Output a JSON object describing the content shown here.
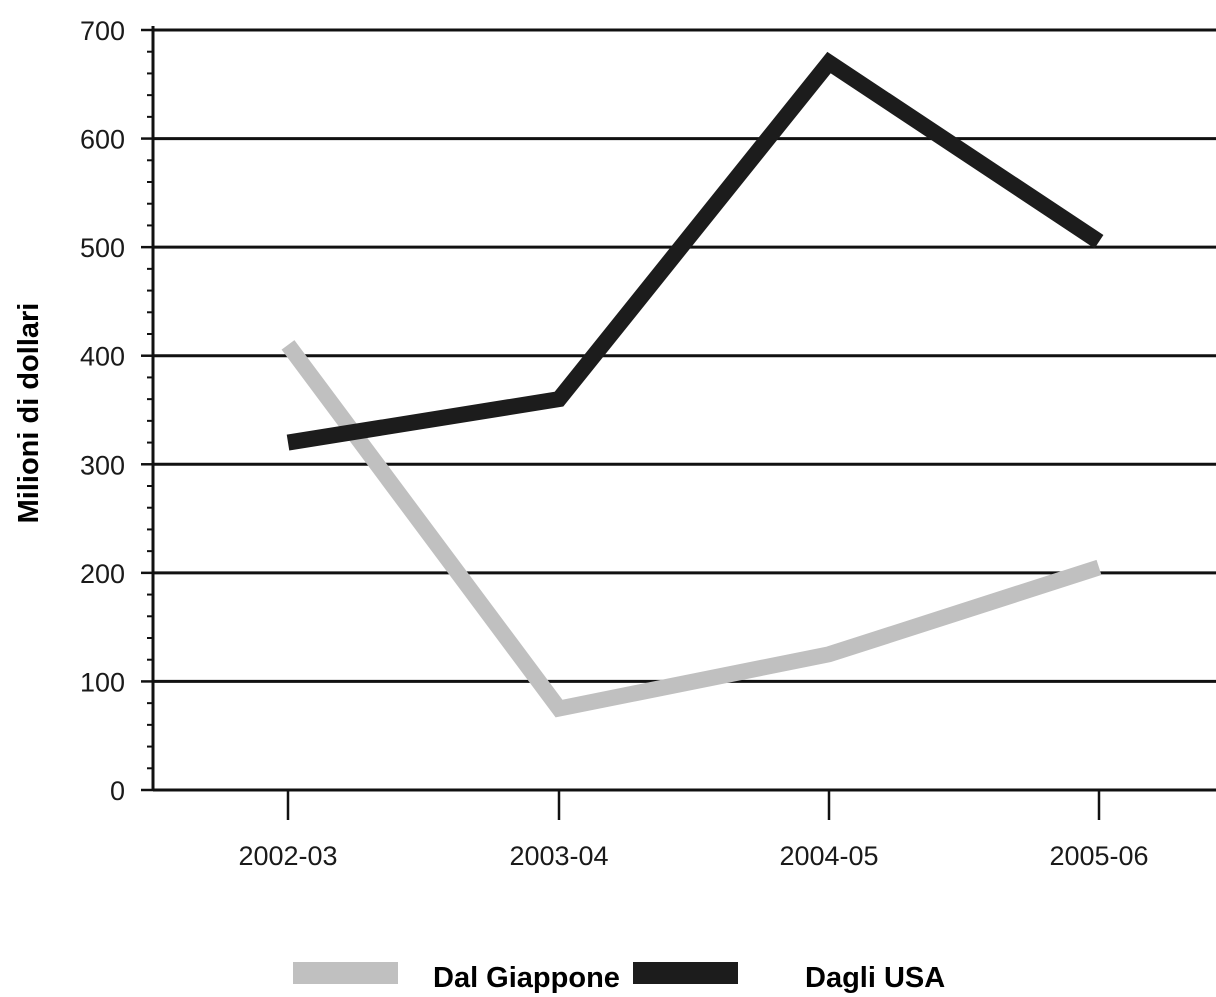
{
  "chart_data": {
    "type": "line",
    "categories": [
      "2002-03",
      "2003-04",
      "2004-05",
      "2005-06"
    ],
    "series": [
      {
        "name": "Dal Giappone",
        "values": [
          410,
          75,
          125,
          205
        ],
        "color": "#c0c0c0"
      },
      {
        "name": "Dagli USA",
        "values": [
          320,
          360,
          670,
          505
        ],
        "color": "#1c1c1c"
      }
    ],
    "ylabel": "Milioni di dollari",
    "xlabel": "",
    "ylim": [
      0,
      700
    ],
    "yticks": [
      0,
      100,
      200,
      300,
      400,
      500,
      600,
      700
    ],
    "grid": true,
    "legend_position": "bottom"
  }
}
